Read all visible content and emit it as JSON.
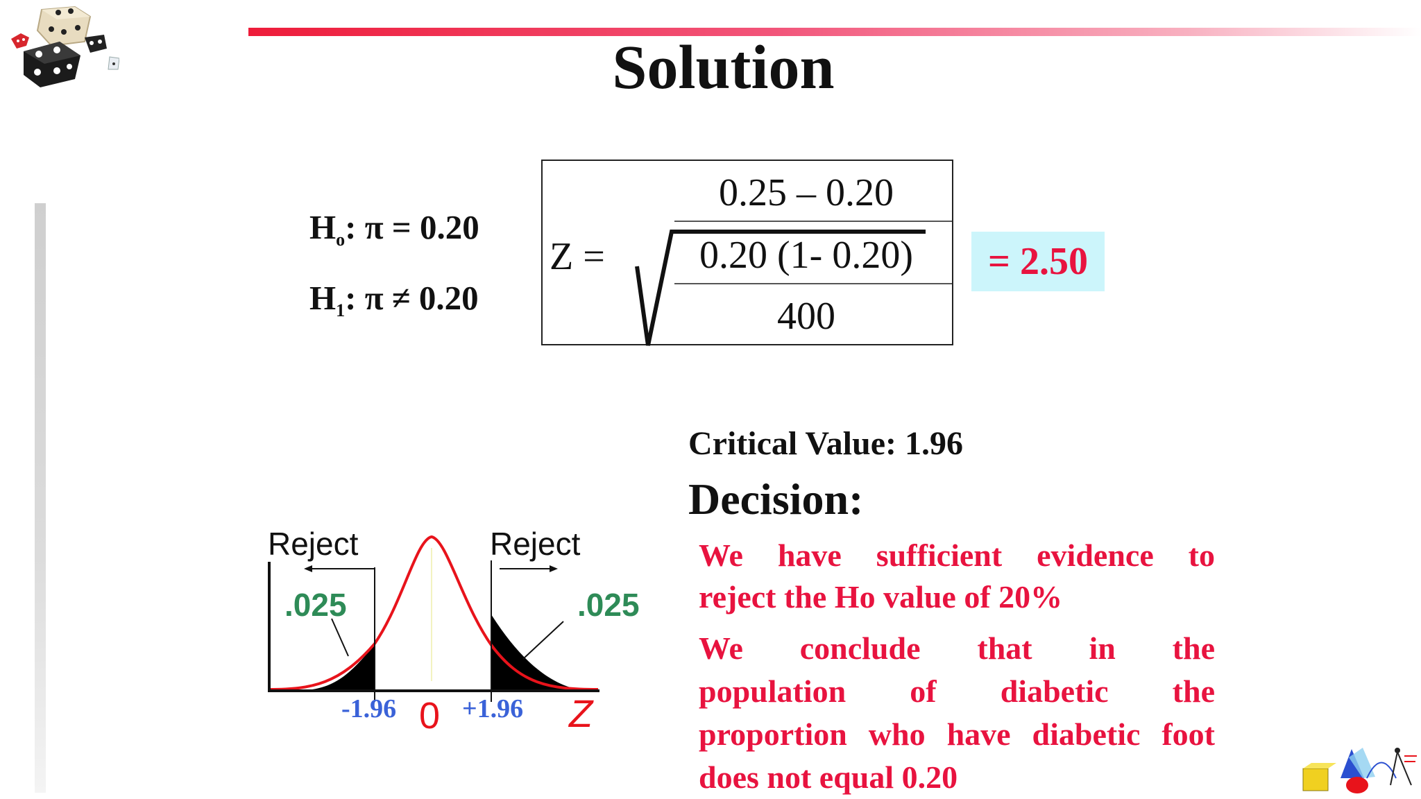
{
  "slide": {
    "title": "Solution"
  },
  "hypotheses": {
    "h0": {
      "symbol": "H",
      "subscript": "o",
      "text": ": π = 0.20"
    },
    "h1": {
      "symbol": "H",
      "subscript": "1",
      "text": ": π ≠ 0.20"
    }
  },
  "formula": {
    "lhs": "Z =",
    "numerator": "0.25 – 0.20",
    "inner_numerator": "0.20 (1- 0.20)",
    "inner_denominator": "400",
    "result": "= 2.50"
  },
  "critical_value": "Critical Value: 1.96",
  "decision": {
    "heading": "Decision:",
    "line1a": "We have sufficient evidence to",
    "line1b": "reject the Ho value of 20%",
    "line2a": "We conclude that in the",
    "line2b": "population of diabetic the",
    "line2c": "proportion who have diabetic foot",
    "line2d": "does not equal 0.20"
  },
  "distribution": {
    "reject_left": "Reject",
    "reject_right": "Reject",
    "alpha_left": ".025",
    "alpha_right": ".025",
    "crit_left": "-1.96",
    "crit_right": "+1.96",
    "center": "0",
    "axis": "Z",
    "colors": {
      "curve": "#e8131b",
      "alpha": "#2e8b57",
      "crit": "#3a62d8",
      "axis_label": "#e8131b"
    }
  },
  "icons": [
    "dice-icon",
    "math-clipart-icon"
  ]
}
